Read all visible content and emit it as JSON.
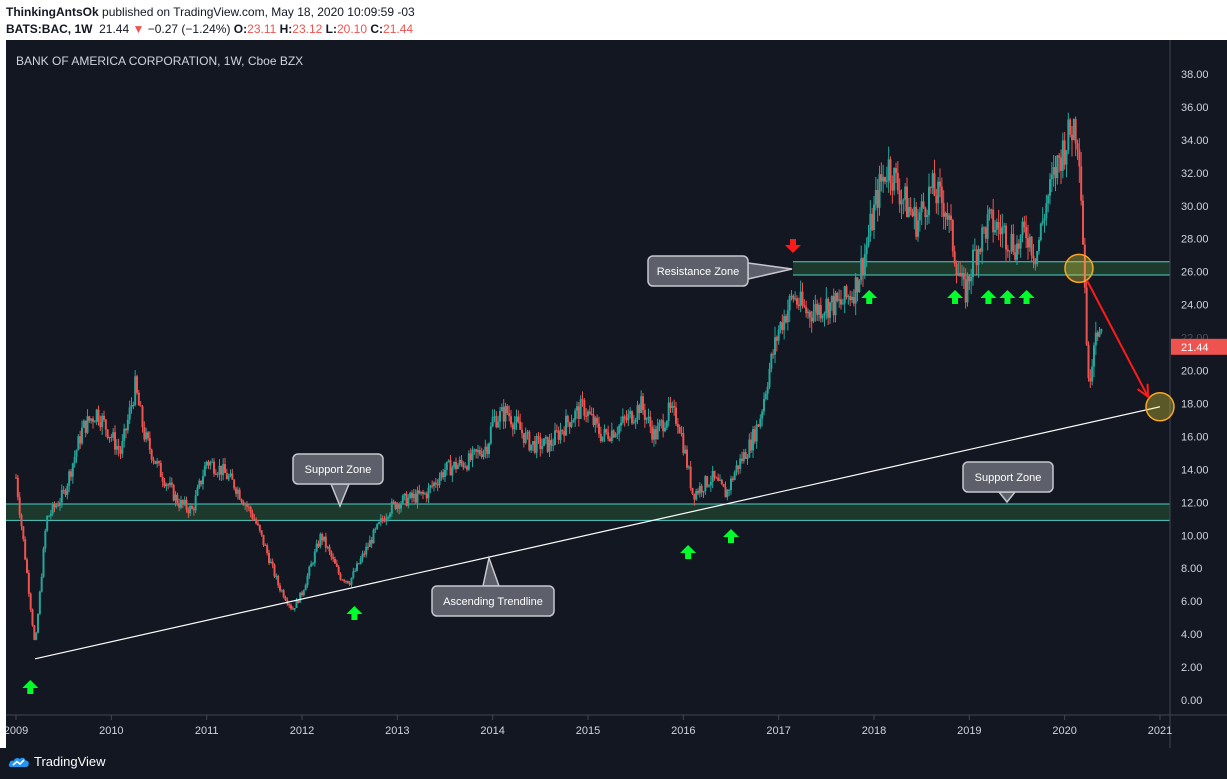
{
  "header": {
    "publisher": "ThinkingAntsOk",
    "published_text": "published on TradingView.com, May 18, 2020 10:09:59 -03",
    "symbol": "BATS:BAC, 1W",
    "last": "21.44",
    "change_arrow": "▼",
    "change": "−0.27 (−1.24%)",
    "o_label": "O:",
    "o_value": "23.11",
    "h_label": "H:",
    "h_value": "23.12",
    "l_label": "L:",
    "l_value": "20.10",
    "c_label": "C:",
    "c_value": "21.44"
  },
  "chart": {
    "legend": "BANK OF AMERICA CORPORATION, 1W, Cboe BZX",
    "price_tag": "21.44",
    "annotations": {
      "resistance": "Resistance Zone",
      "support_left": "Support Zone",
      "support_right": "Support Zone",
      "trendline": "Ascending Trendline"
    }
  },
  "chart_data": {
    "type": "candlestick",
    "title": "BANK OF AMERICA CORPORATION, 1W, Cboe BZX",
    "x_ticks": [
      "2009",
      "2010",
      "2011",
      "2012",
      "2013",
      "2014",
      "2015",
      "2016",
      "2017",
      "2018",
      "2019",
      "2020",
      "2021"
    ],
    "y_ticks": [
      "0.00",
      "2.00",
      "4.00",
      "6.00",
      "8.00",
      "10.00",
      "12.00",
      "14.00",
      "16.00",
      "18.00",
      "20.00",
      "22.00",
      "24.00",
      "26.00",
      "28.00",
      "30.00",
      "32.00",
      "34.00",
      "36.00",
      "38.00"
    ],
    "ylim": [
      0,
      38
    ],
    "xlim": [
      2009.0,
      2021.0
    ],
    "price_path": [
      [
        2009.0,
        13.5
      ],
      [
        2009.1,
        8.5
      ],
      [
        2009.2,
        3.2
      ],
      [
        2009.32,
        11
      ],
      [
        2009.5,
        12.5
      ],
      [
        2009.7,
        16.5
      ],
      [
        2009.85,
        17.5
      ],
      [
        2010.0,
        16
      ],
      [
        2010.1,
        15
      ],
      [
        2010.25,
        19
      ],
      [
        2010.35,
        16
      ],
      [
        2010.5,
        14
      ],
      [
        2010.7,
        12
      ],
      [
        2010.85,
        11.5
      ],
      [
        2011.0,
        14.5
      ],
      [
        2011.15,
        14
      ],
      [
        2011.3,
        13
      ],
      [
        2011.5,
        11
      ],
      [
        2011.6,
        9.5
      ],
      [
        2011.75,
        7
      ],
      [
        2011.9,
        5.5
      ],
      [
        2012.0,
        6.5
      ],
      [
        2012.2,
        10
      ],
      [
        2012.4,
        7.5
      ],
      [
        2012.5,
        7.2
      ],
      [
        2012.75,
        10
      ],
      [
        2012.9,
        11.5
      ],
      [
        2013.0,
        12
      ],
      [
        2013.3,
        12.5
      ],
      [
        2013.5,
        14
      ],
      [
        2013.75,
        14.5
      ],
      [
        2013.95,
        15.5
      ],
      [
        2014.0,
        17
      ],
      [
        2014.15,
        17.5
      ],
      [
        2014.4,
        15.5
      ],
      [
        2014.6,
        15.5
      ],
      [
        2014.8,
        17
      ],
      [
        2014.95,
        17.8
      ],
      [
        2015.15,
        16
      ],
      [
        2015.3,
        16.5
      ],
      [
        2015.5,
        17.5
      ],
      [
        2015.55,
        18
      ],
      [
        2015.7,
        16
      ],
      [
        2015.85,
        17.5
      ],
      [
        2015.95,
        17
      ],
      [
        2016.1,
        12.5
      ],
      [
        2016.3,
        13.5
      ],
      [
        2016.45,
        12.5
      ],
      [
        2016.55,
        14
      ],
      [
        2016.7,
        15.5
      ],
      [
        2016.8,
        17
      ],
      [
        2016.9,
        20
      ],
      [
        2017.0,
        22.5
      ],
      [
        2017.15,
        24.5
      ],
      [
        2017.3,
        23.5
      ],
      [
        2017.5,
        24
      ],
      [
        2017.65,
        24
      ],
      [
        2017.8,
        25
      ],
      [
        2017.9,
        27
      ],
      [
        2018.05,
        31
      ],
      [
        2018.15,
        32.5
      ],
      [
        2018.3,
        30.5
      ],
      [
        2018.45,
        29
      ],
      [
        2018.6,
        31
      ],
      [
        2018.75,
        30
      ],
      [
        2018.85,
        27
      ],
      [
        2018.95,
        24.5
      ],
      [
        2019.05,
        27
      ],
      [
        2019.2,
        29
      ],
      [
        2019.35,
        28.5
      ],
      [
        2019.5,
        27.5
      ],
      [
        2019.6,
        28.5
      ],
      [
        2019.7,
        27
      ],
      [
        2019.8,
        30
      ],
      [
        2019.95,
        33
      ],
      [
        2020.1,
        35
      ],
      [
        2020.15,
        34
      ],
      [
        2020.2,
        27
      ],
      [
        2020.25,
        19
      ],
      [
        2020.33,
        23
      ],
      [
        2020.4,
        21.44
      ]
    ],
    "last_price": 21.44,
    "resistance_zone": [
      25.8,
      26.6
    ],
    "support_zone": [
      10.9,
      11.9
    ],
    "trendline": [
      [
        2009.2,
        2.5
      ],
      [
        2021.0,
        17.8
      ]
    ],
    "up_arrows_years": [
      2009.15,
      2012.55,
      2016.05,
      2016.5,
      2017.95,
      2018.85,
      2019.2,
      2019.4,
      2019.6
    ],
    "down_arrows_years": [
      2017.15
    ],
    "target_circles": [
      [
        2020.15,
        26.2
      ],
      [
        2021.0,
        17.8
      ]
    ]
  },
  "footer": {
    "brand": "TradingView"
  },
  "colors": {
    "background": "#131722",
    "up": "#26a69a",
    "down": "#ef5350",
    "zone_fill": "#1f3f2e",
    "zone_border": "#4dd0c8",
    "arrow_up": "#00ff2a",
    "arrow_down": "#ff1a1a",
    "grid_text": "#d1d4dc"
  }
}
